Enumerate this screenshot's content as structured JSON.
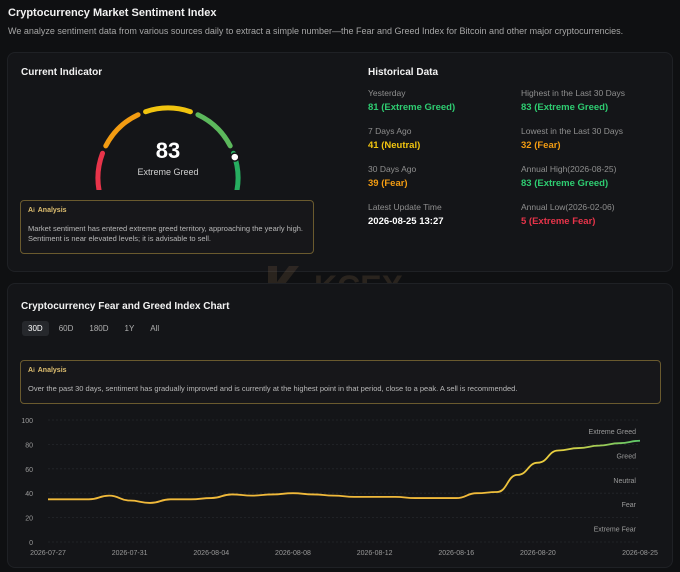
{
  "header": {
    "title": "Cryptocurrency Market Sentiment Index",
    "description": "We analyze sentiment data from various sources daily to extract a simple number—the Fear and Greed Index for Bitcoin and other major cryptocurrencies."
  },
  "current": {
    "title": "Current Indicator",
    "value": 83,
    "value_text": "83",
    "label": "Extreme Greed",
    "analysis_heading": "Analysis",
    "analysis_text": "Market sentiment has entered extreme greed territory, approaching the yearly high. Sentiment is near elevated levels; it is advisable to sell."
  },
  "historical": {
    "title": "Historical Data",
    "items": [
      {
        "label": "Yesterday",
        "value": "81 (Extreme Greed)",
        "color": "#2ecc71"
      },
      {
        "label": "7 Days Ago",
        "value": "41 (Neutral)",
        "color": "#f1c40f"
      },
      {
        "label": "30 Days Ago",
        "value": "39 (Fear)",
        "color": "#f39c12"
      },
      {
        "label": "Latest Update Time",
        "value": "2026-08-25 13:27",
        "color": "#ffffff"
      },
      {
        "label": "Highest in the Last 30 Days",
        "value": "83 (Extreme Greed)",
        "color": "#2ecc71"
      },
      {
        "label": "Lowest in the Last 30 Days",
        "value": "32 (Fear)",
        "color": "#f39c12"
      },
      {
        "label": "Annual High(2026-08-25)",
        "value": "83 (Extreme Greed)",
        "color": "#2ecc71"
      },
      {
        "label": "Annual Low(2026-02-06)",
        "value": "5 (Extreme Fear)",
        "color": "#e8344a"
      }
    ]
  },
  "chart_section": {
    "title": "Cryptocurrency Fear and Greed Index Chart",
    "tabs": [
      "30D",
      "60D",
      "180D",
      "1Y",
      "All"
    ],
    "active_tab": "30D",
    "analysis_heading": "Analysis",
    "analysis_text": "Over the past 30 days, sentiment has gradually improved and is currently at the highest point in that period, close to a peak. A sell is recommended."
  },
  "watermark": "KCEX",
  "chart_data": {
    "type": "line",
    "x": [
      "2026-07-27",
      "2026-07-28",
      "2026-07-29",
      "2026-07-30",
      "2026-07-31",
      "2026-08-01",
      "2026-08-02",
      "2026-08-03",
      "2026-08-04",
      "2026-08-05",
      "2026-08-06",
      "2026-08-07",
      "2026-08-08",
      "2026-08-09",
      "2026-08-10",
      "2026-08-11",
      "2026-08-12",
      "2026-08-13",
      "2026-08-14",
      "2026-08-15",
      "2026-08-16",
      "2026-08-17",
      "2026-08-18",
      "2026-08-19",
      "2026-08-20",
      "2026-08-21",
      "2026-08-22",
      "2026-08-23",
      "2026-08-24",
      "2026-08-25"
    ],
    "series": [
      {
        "values": [
          35,
          35,
          35,
          38,
          34,
          32,
          35,
          35,
          36,
          39,
          38,
          39,
          40,
          39,
          38,
          37,
          37,
          37,
          36,
          36,
          36,
          40,
          41,
          55,
          65,
          75,
          77,
          79,
          81,
          83
        ],
        "color": "#f5c242"
      }
    ],
    "x_ticks": [
      "2026-07-27",
      "2026-07-31",
      "2026-08-04",
      "2026-08-08",
      "2026-08-12",
      "2026-08-16",
      "2026-08-20",
      "2026-08-25"
    ],
    "y_ticks": [
      0,
      20,
      40,
      60,
      80,
      100
    ],
    "ylim": [
      0,
      100
    ],
    "zone_labels": [
      {
        "text": "Extreme Greed",
        "value": 91
      },
      {
        "text": "Greed",
        "value": 71
      },
      {
        "text": "Neutral",
        "value": 51
      },
      {
        "text": "Fear",
        "value": 31
      },
      {
        "text": "Extreme Fear",
        "value": 11
      }
    ],
    "grid": true,
    "title": "",
    "xlabel": "",
    "ylabel": ""
  },
  "colors": {
    "extreme_fear": "#e8344a",
    "fear": "#f39c12",
    "neutral": "#f1c40f",
    "greed": "#5cb85c",
    "extreme_greed": "#27ae60"
  }
}
